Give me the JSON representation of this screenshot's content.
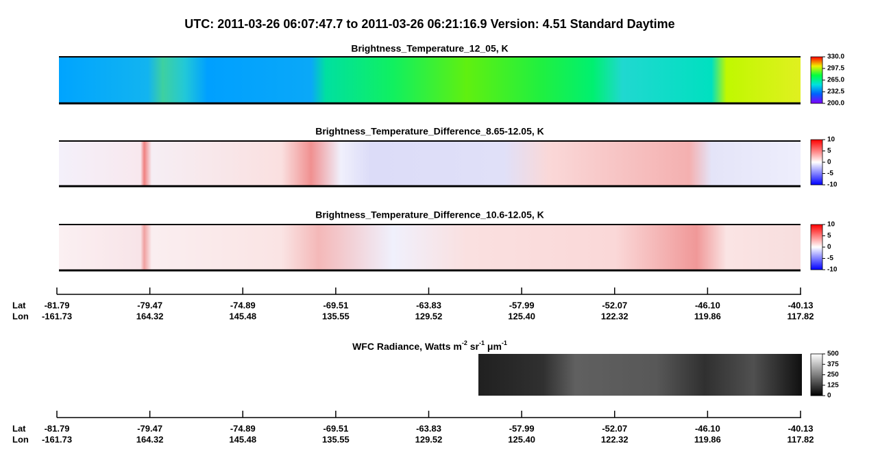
{
  "header": {
    "title": "UTC:  2011-03-26   06:07:47.7  to  2011-03-26   06:21:16.9    Version: 4.51  Standard Daytime"
  },
  "panels": [
    {
      "title": "Brightness_Temperature_12_05, K",
      "range": [
        200,
        330
      ],
      "ticks": [
        {
          "value": 330,
          "label": "330.0"
        },
        {
          "value": 297.5,
          "label": "297.5"
        },
        {
          "value": 265,
          "label": "265.0"
        },
        {
          "value": 232.5,
          "label": "232.5"
        },
        {
          "value": 200,
          "label": "200.0"
        }
      ]
    },
    {
      "title": "Brightness_Temperature_Difference_8.65-12.05, K",
      "range": [
        -10,
        10
      ],
      "ticks": [
        10,
        5,
        0,
        -5,
        -10
      ]
    },
    {
      "title": "Brightness_Temperature_Difference_10.6-12.05, K",
      "range": [
        -10,
        10
      ],
      "ticks": [
        10,
        5,
        0,
        -5,
        -10
      ]
    },
    {
      "title": [
        {
          "text": "WFC Radiance, Watts m"
        },
        {
          "text": "-2",
          "sup": true
        },
        {
          "text": " sr"
        },
        {
          "text": "-1",
          "sup": true
        },
        {
          "text": " μm"
        },
        {
          "text": "-1",
          "sup": true
        }
      ],
      "range": [
        0,
        500
      ],
      "ticks": [
        500,
        375,
        250,
        125,
        0
      ]
    }
  ],
  "axis": {
    "lat_label": "Lat",
    "lon_label": "Lon",
    "ticks": [
      {
        "lat": "-81.79",
        "lon": "-161.73"
      },
      {
        "lat": "-79.47",
        "lon": "164.32"
      },
      {
        "lat": "-74.89",
        "lon": "145.48"
      },
      {
        "lat": "-69.51",
        "lon": "135.55"
      },
      {
        "lat": "-63.83",
        "lon": "129.52"
      },
      {
        "lat": "-57.99",
        "lon": "125.40"
      },
      {
        "lat": "-52.07",
        "lon": "122.32"
      },
      {
        "lat": "-46.10",
        "lon": "119.86"
      },
      {
        "lat": "-40.13",
        "lon": "117.82"
      }
    ]
  }
}
